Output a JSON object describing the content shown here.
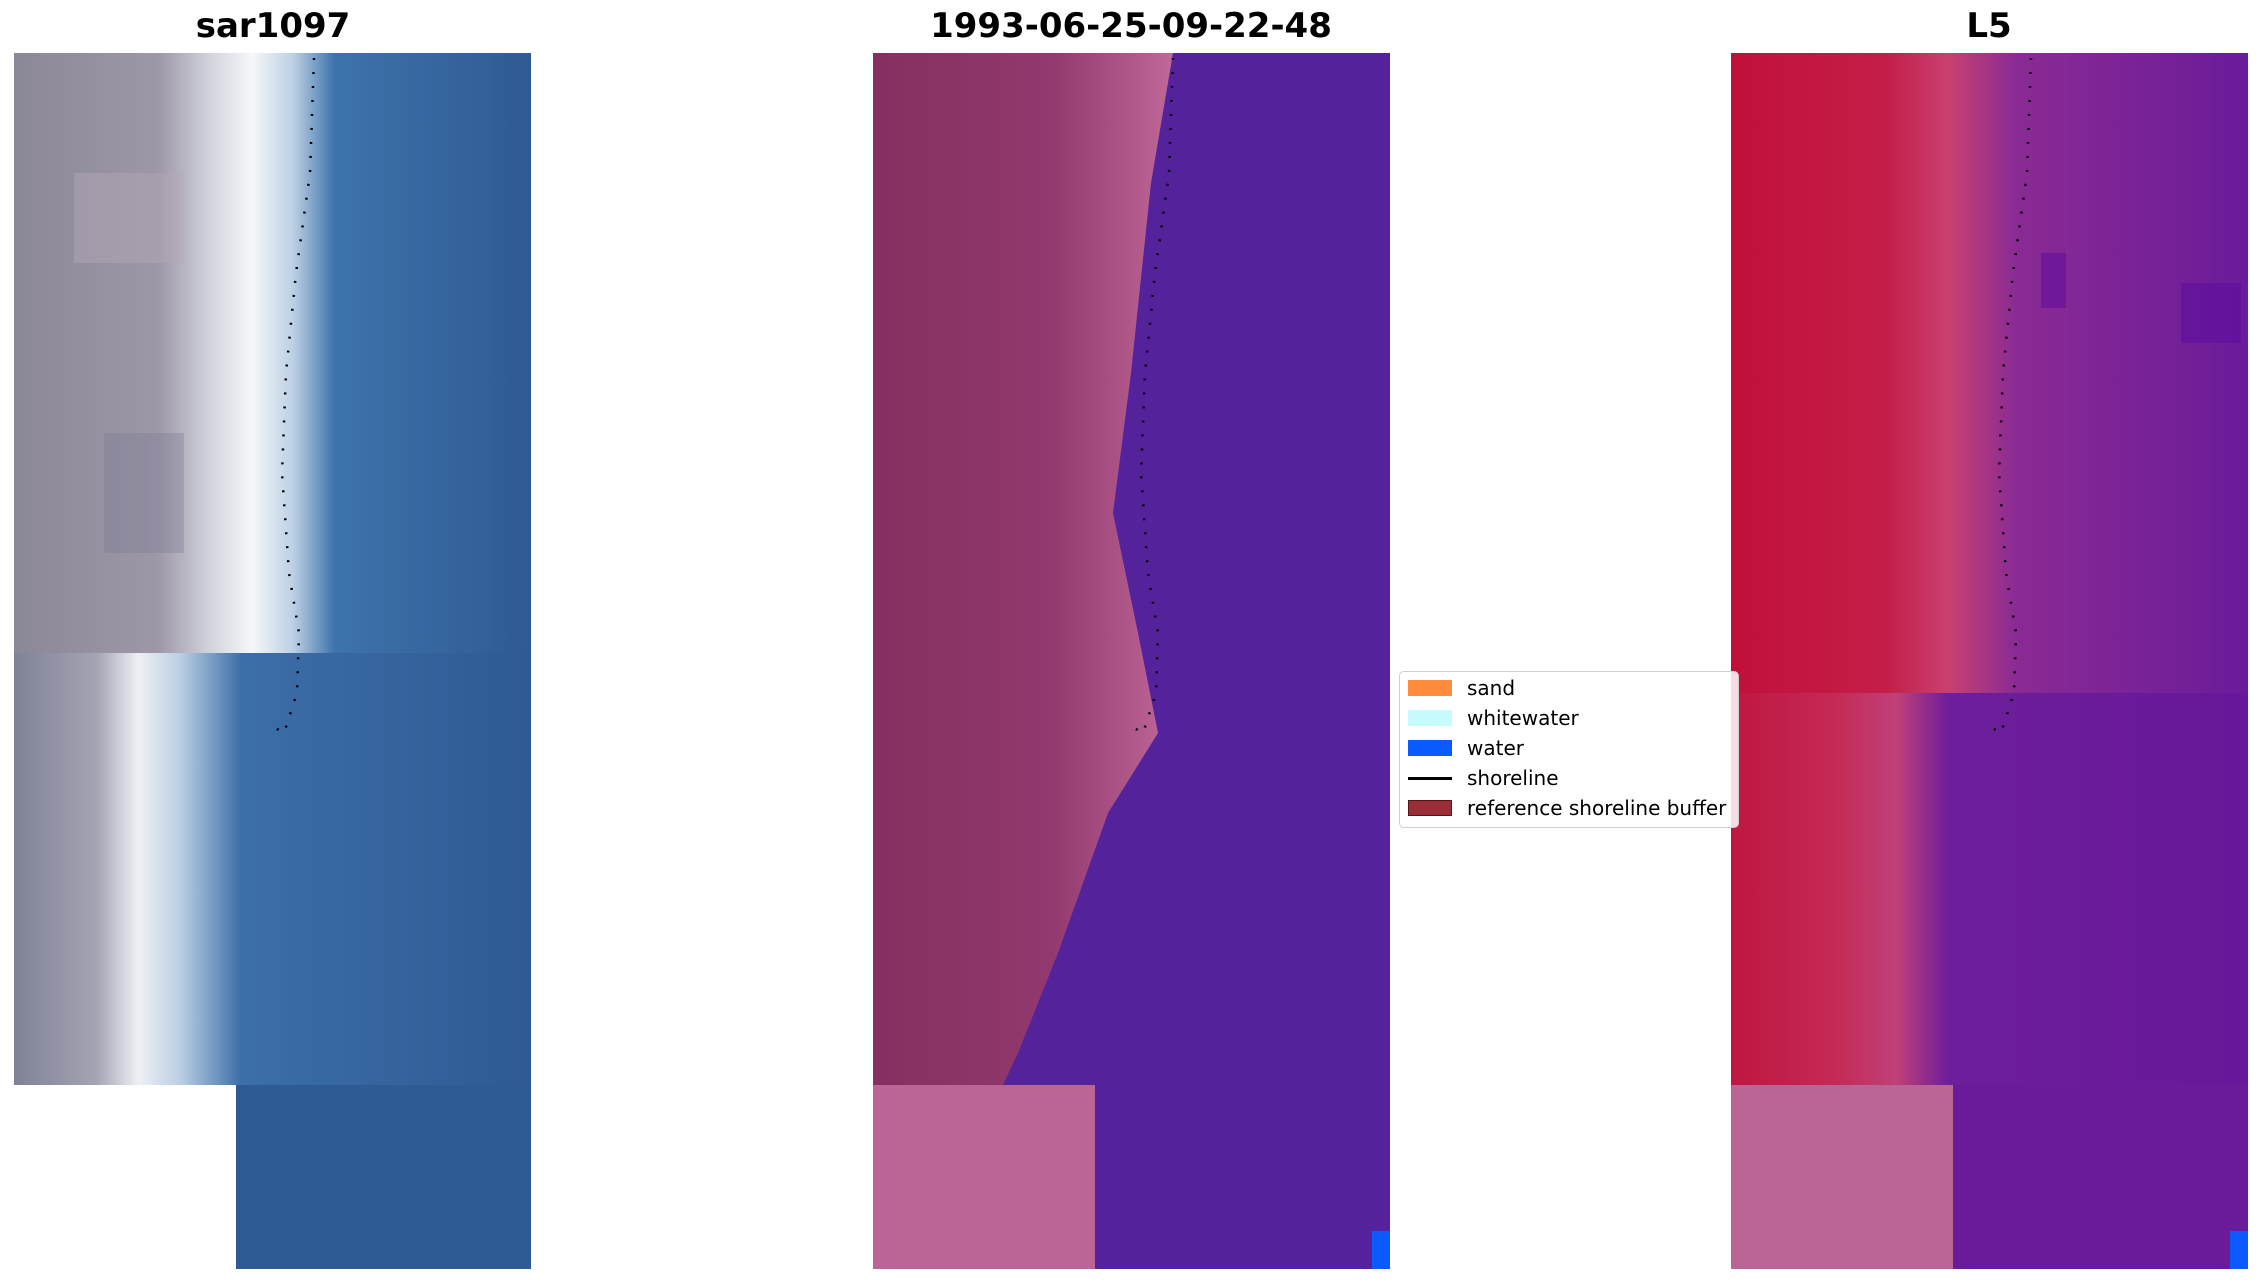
{
  "panels": [
    {
      "title": "sar1097"
    },
    {
      "title": "1993-06-25-09-22-48"
    },
    {
      "title": "L5"
    }
  ],
  "legend": {
    "items": [
      {
        "label": "sand",
        "kind": "patch",
        "color": "#ff8c3c"
      },
      {
        "label": "whitewater",
        "kind": "patch",
        "color": "#c8fcfc"
      },
      {
        "label": "water",
        "kind": "patch",
        "color": "#0a5aff"
      },
      {
        "label": "shoreline",
        "kind": "line",
        "color": "#000000"
      },
      {
        "label": "reference shoreline buffer",
        "kind": "patch",
        "color": "#9a2e38"
      }
    ]
  },
  "colors": {
    "rgb_sand": "#8e8aa0",
    "rgb_whitewater": "#f4f6f8",
    "rgb_water": "#2e5f99",
    "class_land": "#8c336b",
    "class_land_light": "#bd6595",
    "class_water": "#54229a",
    "index_land": "#c0143a",
    "index_water": "#6d1e9a",
    "nodata_pink": "#bb6596",
    "accent_blue": "#0a5aff"
  }
}
